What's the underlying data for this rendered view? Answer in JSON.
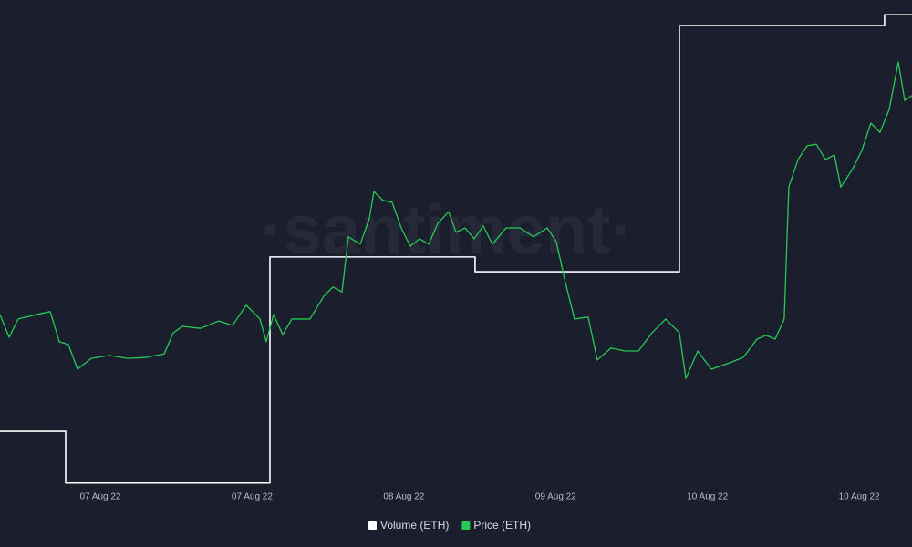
{
  "chart_data": {
    "type": "line",
    "watermark": "·santiment·",
    "xlim": [
      4.07,
      76.17
    ],
    "ylim": [
      0,
      100
    ],
    "xticks": [
      {
        "value": 12,
        "label": "07 Aug 22"
      },
      {
        "value": 24,
        "label": "07 Aug 22"
      },
      {
        "value": 36,
        "label": "08 Aug 22"
      },
      {
        "value": 48,
        "label": "09 Aug 22"
      },
      {
        "value": 60,
        "label": "10 Aug 22"
      },
      {
        "value": 72,
        "label": "10 Aug 22"
      }
    ],
    "series": [
      {
        "name": "Volume (ETH)",
        "color": "#ffffff",
        "step": true,
        "x": [
          4.07,
          9.26,
          25.41,
          41.63,
          57.78,
          74.0,
          76.17
        ],
        "values": [
          12.4,
          1.9,
          47.8,
          44.8,
          94.8,
          97.0,
          97.0
        ]
      },
      {
        "name": "Price (ETH)",
        "color": "#26c953",
        "step": false,
        "x": [
          4.07,
          4.79,
          5.51,
          6.95,
          8.04,
          8.76,
          9.48,
          10.2,
          11.28,
          12.72,
          14.16,
          15.61,
          17.05,
          17.77,
          18.49,
          19.93,
          21.37,
          22.45,
          23.54,
          24.62,
          25.12,
          25.7,
          26.42,
          27.14,
          28.58,
          29.66,
          30.39,
          31.11,
          31.61,
          32.55,
          33.27,
          33.63,
          34.35,
          35.07,
          35.79,
          36.51,
          37.24,
          37.96,
          38.68,
          39.54,
          40.12,
          40.84,
          41.56,
          42.28,
          43.0,
          44.08,
          45.17,
          46.25,
          47.33,
          48.05,
          48.77,
          49.49,
          50.57,
          51.29,
          52.38,
          53.46,
          54.54,
          55.62,
          56.7,
          57.78,
          58.29,
          59.23,
          60.31,
          61.75,
          62.83,
          63.91,
          64.63,
          65.35,
          66.07,
          66.43,
          67.16,
          67.88,
          68.6,
          69.32,
          70.04,
          70.54,
          71.48,
          72.2,
          72.92,
          73.64,
          74.37,
          75.09,
          75.59,
          76.17
        ],
        "values": [
          36.1,
          31.5,
          35.2,
          36.1,
          36.7,
          30.6,
          30.0,
          25.0,
          27.2,
          27.8,
          27.2,
          27.4,
          28.1,
          32.4,
          33.7,
          33.3,
          34.8,
          33.9,
          38.0,
          35.2,
          30.6,
          36.1,
          32.0,
          35.2,
          35.2,
          39.8,
          41.7,
          40.7,
          51.9,
          50.4,
          55.6,
          61.1,
          59.3,
          58.9,
          53.7,
          50.0,
          51.5,
          50.4,
          54.6,
          57.0,
          52.8,
          53.7,
          51.5,
          54.1,
          50.4,
          53.7,
          53.7,
          51.9,
          53.7,
          50.9,
          42.6,
          35.2,
          35.6,
          26.9,
          29.3,
          28.7,
          28.7,
          32.4,
          35.2,
          32.4,
          23.1,
          28.7,
          25.0,
          26.3,
          27.4,
          31.1,
          31.9,
          31.1,
          35.2,
          62.0,
          67.6,
          70.4,
          70.7,
          67.6,
          68.5,
          62.0,
          65.7,
          69.4,
          75.0,
          73.1,
          77.8,
          87.4,
          79.6,
          80.6
        ]
      }
    ]
  }
}
